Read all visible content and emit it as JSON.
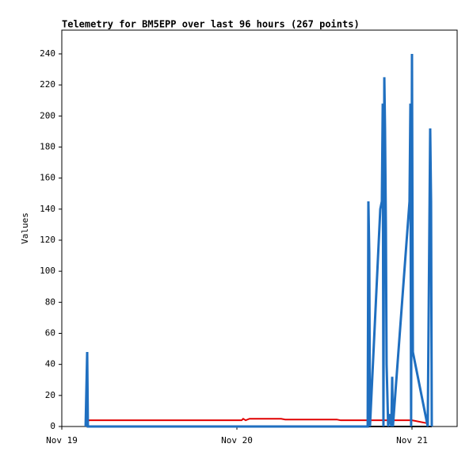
{
  "chart_data": {
    "type": "line",
    "title": "Telemetry for BM5EPP over last 96 hours (267 points)",
    "y_label": "Values",
    "xlim": [
      19,
      21.258
    ],
    "ylim": [
      0,
      255.3
    ],
    "xticks": [
      {
        "value": 19,
        "label": "Nov 19"
      },
      {
        "value": 20,
        "label": "Nov 20"
      },
      {
        "value": 21,
        "label": "Nov 21"
      }
    ],
    "yticks": [
      0,
      20,
      40,
      60,
      80,
      100,
      120,
      140,
      160,
      180,
      200,
      220,
      240
    ],
    "series": [
      {
        "color": "#1f6fc0",
        "x": [
          19.136,
          19.145,
          19.149,
          20.747,
          20.751,
          20.756,
          20.76,
          20.819,
          20.828,
          20.833,
          20.837,
          20.842,
          20.846,
          20.851,
          20.855,
          20.864,
          20.873,
          20.882,
          20.887,
          20.891,
          20.986,
          20.991,
          20.995,
          21.0,
          21.005,
          21.09,
          21.104,
          21.109,
          21.113
        ],
        "values": [
          0,
          48,
          0,
          0,
          145,
          112,
          0,
          140,
          145,
          208,
          0,
          225,
          192,
          128,
          40,
          0,
          8,
          0,
          32,
          0,
          145,
          208,
          0,
          240,
          48,
          0,
          192,
          145,
          0
        ]
      },
      {
        "color": "#e00000",
        "x": [
          19.145,
          19.154,
          20.027,
          20.036,
          20.05,
          20.072,
          20.253,
          20.276,
          20.57,
          20.593,
          21.0,
          21.09
        ],
        "values": [
          2,
          4,
          4,
          5,
          4,
          5,
          5,
          4.5,
          4.5,
          4,
          4,
          2
        ]
      },
      {
        "color": "#000000",
        "x": [
          19.145,
          21.113
        ],
        "values": [
          0,
          0
        ]
      }
    ]
  }
}
